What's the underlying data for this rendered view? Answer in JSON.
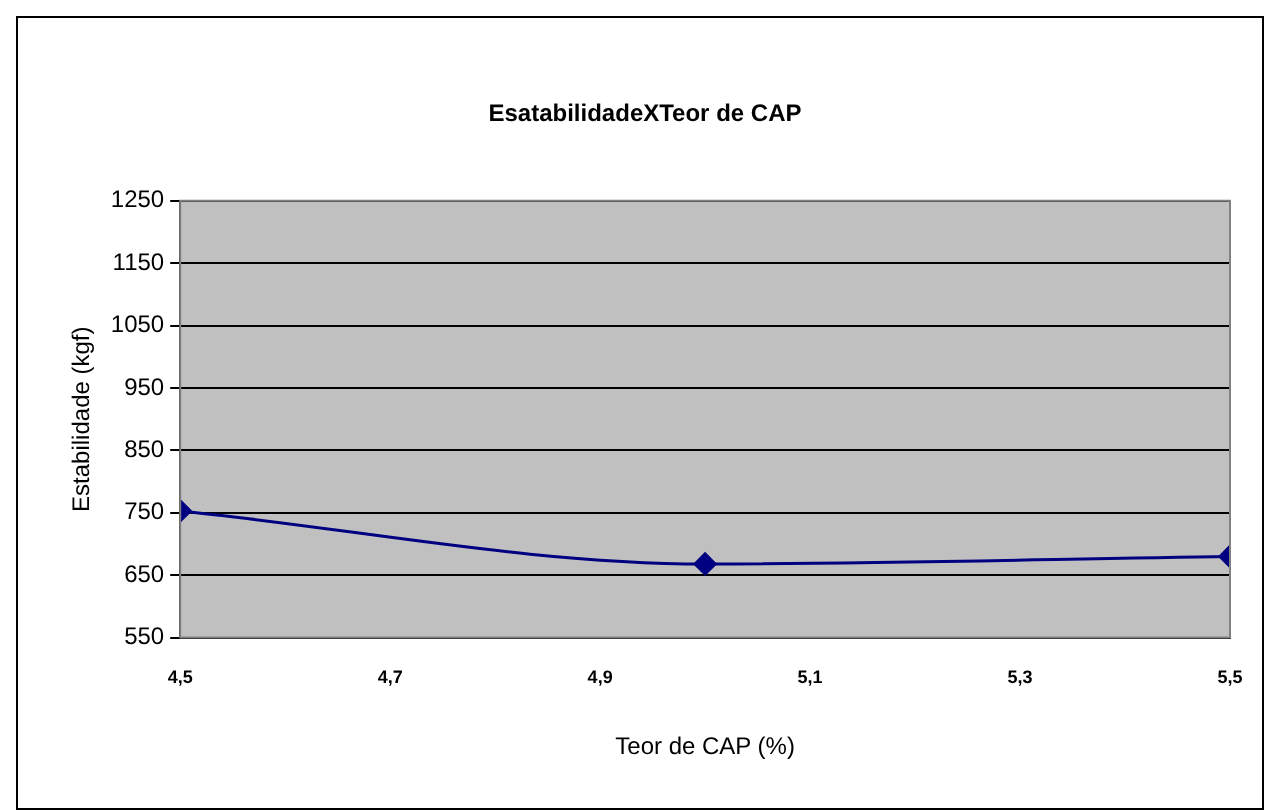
{
  "chart_data": {
    "type": "line",
    "title": "EsatabilidadeXTeor de CAP",
    "xlabel": "Teor de CAP (%)",
    "ylabel": "Estabilidade (kgf)",
    "x": [
      4.5,
      5.0,
      5.5
    ],
    "series": [
      {
        "color": "#000080",
        "values": [
          753,
          668,
          680
        ]
      }
    ],
    "xlim": [
      4.5,
      5.5
    ],
    "xticks": [
      {
        "value": 4.5,
        "label": "4,5"
      },
      {
        "value": 4.7,
        "label": "4,7"
      },
      {
        "value": 4.9,
        "label": "4,9"
      },
      {
        "value": 5.1,
        "label": "5,1"
      },
      {
        "value": 5.3,
        "label": "5,3"
      },
      {
        "value": 5.5,
        "label": "5,5"
      }
    ],
    "ylim": [
      550,
      1250
    ],
    "yticks": [
      550,
      650,
      750,
      850,
      950,
      1050,
      1150,
      1250
    ],
    "grid": "y",
    "legend": false,
    "marker": "diamond",
    "line_style": "solid"
  }
}
